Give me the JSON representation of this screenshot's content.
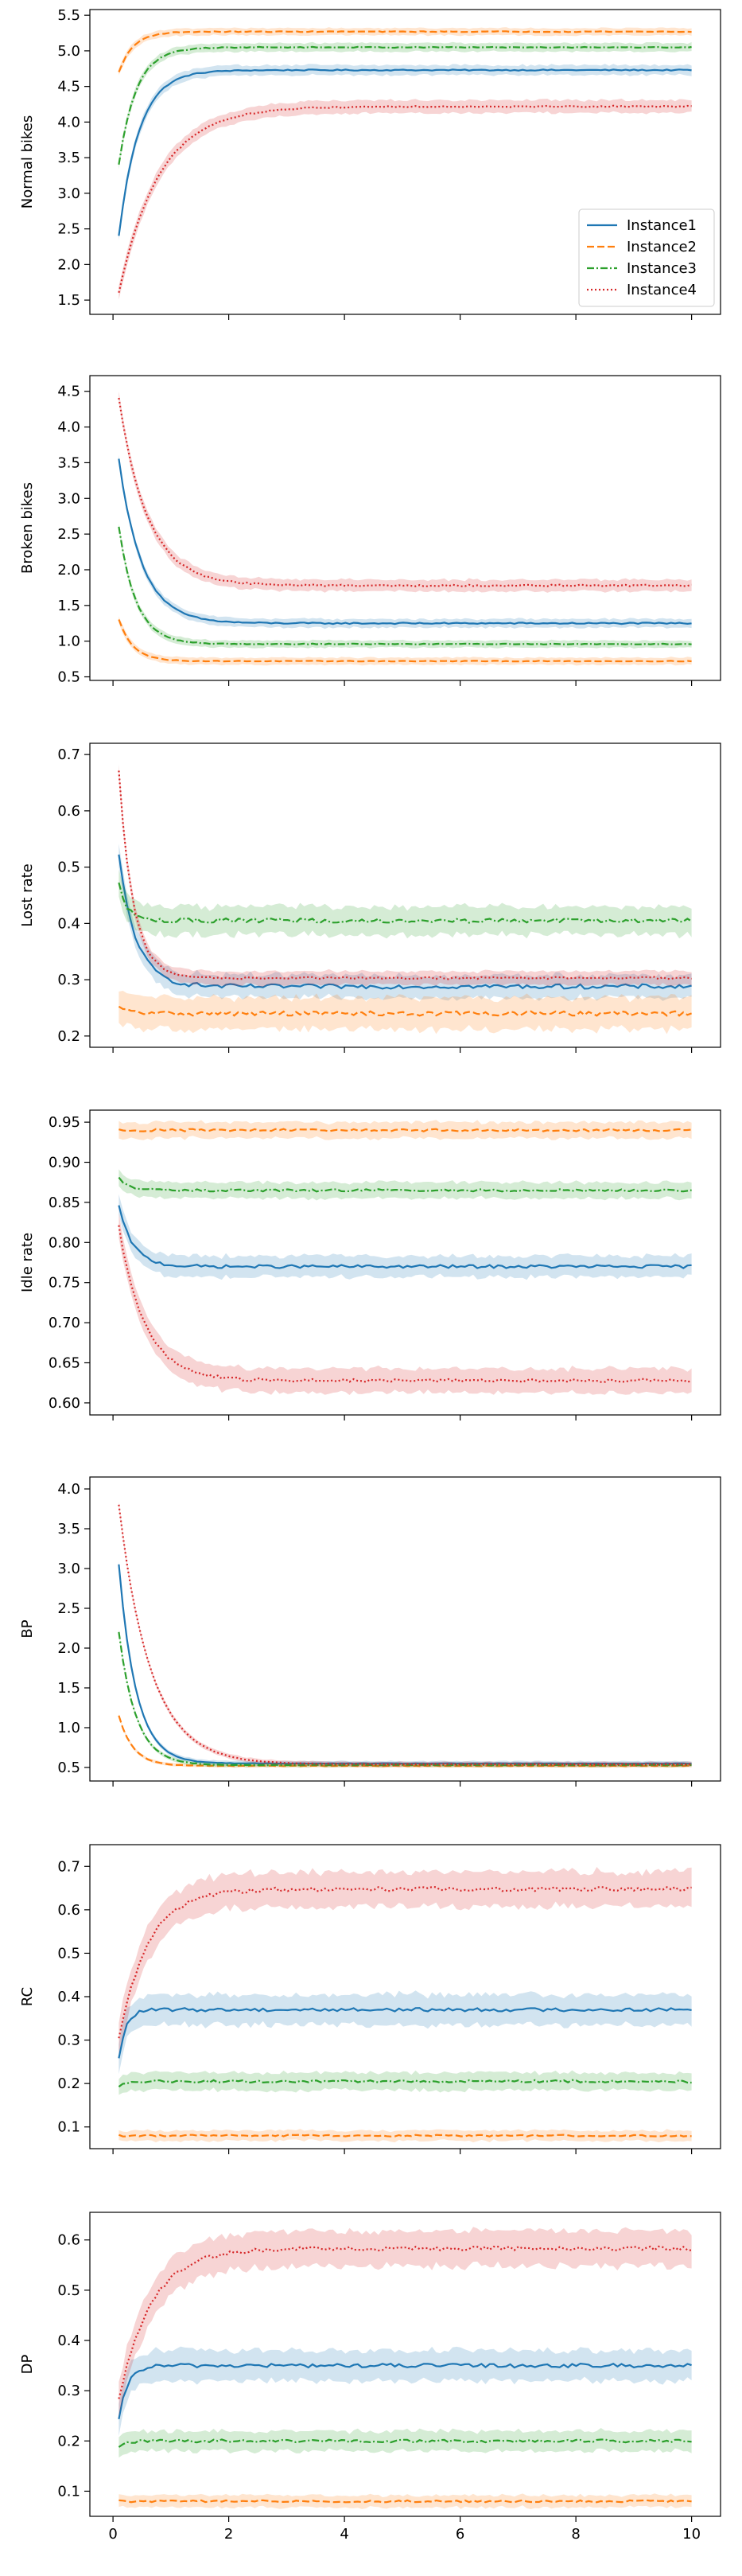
{
  "chart_data": {
    "type": "line",
    "x_range": [
      0.1,
      10
    ],
    "xlim": [
      -0.4,
      10.5
    ],
    "x_ticks": [
      0,
      2,
      4,
      6,
      8,
      10
    ],
    "x_tick_labels": [
      "0",
      "2",
      "4",
      "6",
      "8",
      "10"
    ],
    "series_meta": [
      {
        "name": "Instance1",
        "color": "#1f77b4",
        "dash": "solid"
      },
      {
        "name": "Instance2",
        "color": "#ff7f0e",
        "dash": "dashed"
      },
      {
        "name": "Instance3",
        "color": "#2ca02c",
        "dash": "dashdot"
      },
      {
        "name": "Instance4",
        "color": "#d62728",
        "dash": "dotted"
      }
    ],
    "legend": {
      "placement": "lower-right",
      "panel": 0
    },
    "panels": [
      {
        "ylabel": "Normal bikes",
        "ylim": [
          1.3,
          5.58
        ],
        "yticks": [
          "1.5",
          "2.0",
          "2.5",
          "3.0",
          "3.5",
          "4.0",
          "4.5",
          "5.0",
          "5.5"
        ],
        "series": [
          {
            "name": "Instance1",
            "start": 2.4,
            "end": 4.73,
            "tau": 0.35,
            "band": 0.07,
            "noise": 0.008
          },
          {
            "name": "Instance2",
            "start": 4.7,
            "end": 5.27,
            "tau": 0.25,
            "band": 0.05,
            "noise": 0.006
          },
          {
            "name": "Instance3",
            "start": 3.4,
            "end": 5.05,
            "tau": 0.3,
            "band": 0.06,
            "noise": 0.006
          },
          {
            "name": "Instance4",
            "start": 1.6,
            "end": 4.22,
            "tau": 0.7,
            "band": 0.09,
            "noise": 0.01
          }
        ]
      },
      {
        "ylabel": "Broken bikes",
        "ylim": [
          0.45,
          4.72
        ],
        "yticks": [
          "0.5",
          "1.0",
          "1.5",
          "2.0",
          "2.5",
          "3.0",
          "3.5",
          "4.0",
          "4.5"
        ],
        "series": [
          {
            "name": "Instance1",
            "start": 3.55,
            "end": 1.25,
            "tau": 0.4,
            "band": 0.06,
            "noise": 0.01
          },
          {
            "name": "Instance2",
            "start": 1.3,
            "end": 0.72,
            "tau": 0.25,
            "band": 0.05,
            "noise": 0.005
          },
          {
            "name": "Instance3",
            "start": 2.6,
            "end": 0.96,
            "tau": 0.3,
            "band": 0.05,
            "noise": 0.006
          },
          {
            "name": "Instance4",
            "start": 4.4,
            "end": 1.78,
            "tau": 0.5,
            "band": 0.08,
            "noise": 0.012
          }
        ]
      },
      {
        "ylabel": "Lost rate",
        "ylim": [
          0.18,
          0.72
        ],
        "yticks": [
          "0.2",
          "0.3",
          "0.4",
          "0.5",
          "0.6",
          "0.7"
        ],
        "series": [
          {
            "name": "Instance1",
            "start": 0.52,
            "end": 0.288,
            "tau": 0.3,
            "band": 0.02,
            "noise": 0.004
          },
          {
            "name": "Instance2",
            "start": 0.25,
            "end": 0.24,
            "tau": 0.2,
            "band": 0.028,
            "noise": 0.004
          },
          {
            "name": "Instance3",
            "start": 0.47,
            "end": 0.405,
            "tau": 0.15,
            "band": 0.025,
            "noise": 0.004
          },
          {
            "name": "Instance4",
            "start": 0.67,
            "end": 0.303,
            "tau": 0.25,
            "band": 0.012,
            "noise": 0.002
          }
        ]
      },
      {
        "ylabel": "Idle rate",
        "ylim": [
          0.585,
          0.965
        ],
        "yticks": [
          "0.60",
          "0.65",
          "0.70",
          "0.75",
          "0.80",
          "0.85",
          "0.90",
          "0.95"
        ],
        "series": [
          {
            "name": "Instance1",
            "start": 0.845,
            "end": 0.77,
            "tau": 0.25,
            "band": 0.013,
            "noise": 0.002
          },
          {
            "name": "Instance2",
            "start": 0.94,
            "end": 0.94,
            "tau": 0.2,
            "band": 0.01,
            "noise": 0.0015
          },
          {
            "name": "Instance3",
            "start": 0.88,
            "end": 0.865,
            "tau": 0.2,
            "band": 0.01,
            "noise": 0.0015
          },
          {
            "name": "Instance4",
            "start": 0.82,
            "end": 0.628,
            "tau": 0.45,
            "band": 0.015,
            "noise": 0.002
          }
        ]
      },
      {
        "ylabel": "BP",
        "ylim": [
          0.33,
          4.15
        ],
        "yticks": [
          "0.5",
          "1.0",
          "1.5",
          "2.0",
          "2.5",
          "3.0",
          "3.5",
          "4.0"
        ],
        "series": [
          {
            "name": "Instance1",
            "start": 3.05,
            "end": 0.55,
            "tau": 0.3,
            "band": 0.03,
            "noise": 0.003
          },
          {
            "name": "Instance2",
            "start": 1.15,
            "end": 0.52,
            "tau": 0.25,
            "band": 0.02,
            "noise": 0.003
          },
          {
            "name": "Instance3",
            "start": 2.2,
            "end": 0.53,
            "tau": 0.3,
            "band": 0.025,
            "noise": 0.003
          },
          {
            "name": "Instance4",
            "start": 3.8,
            "end": 0.54,
            "tau": 0.55,
            "band": 0.03,
            "noise": 0.003
          }
        ]
      },
      {
        "ylabel": "RC",
        "ylim": [
          0.05,
          0.75
        ],
        "yticks": [
          "0.1",
          "0.2",
          "0.3",
          "0.4",
          "0.5",
          "0.6",
          "0.7"
        ],
        "series": [
          {
            "name": "Instance1",
            "start": 0.255,
            "end": 0.37,
            "tau": 0.12,
            "band": 0.035,
            "noise": 0.004
          },
          {
            "name": "Instance2",
            "start": 0.08,
            "end": 0.08,
            "tau": 0.1,
            "band": 0.012,
            "noise": 0.002
          },
          {
            "name": "Instance3",
            "start": 0.19,
            "end": 0.205,
            "tau": 0.1,
            "band": 0.02,
            "noise": 0.003
          },
          {
            "name": "Instance4",
            "start": 0.3,
            "end": 0.648,
            "tau": 0.5,
            "band": 0.04,
            "noise": 0.005
          }
        ]
      },
      {
        "ylabel": "DP",
        "ylim": [
          0.05,
          0.655
        ],
        "yticks": [
          "0.1",
          "0.2",
          "0.3",
          "0.4",
          "0.5",
          "0.6"
        ],
        "series": [
          {
            "name": "Instance1",
            "start": 0.24,
            "end": 0.35,
            "tau": 0.15,
            "band": 0.03,
            "noise": 0.004
          },
          {
            "name": "Instance2",
            "start": 0.08,
            "end": 0.08,
            "tau": 0.1,
            "band": 0.012,
            "noise": 0.002
          },
          {
            "name": "Instance3",
            "start": 0.185,
            "end": 0.2,
            "tau": 0.1,
            "band": 0.02,
            "noise": 0.003
          },
          {
            "name": "Instance4",
            "start": 0.28,
            "end": 0.583,
            "tau": 0.55,
            "band": 0.035,
            "noise": 0.004
          }
        ]
      }
    ]
  }
}
